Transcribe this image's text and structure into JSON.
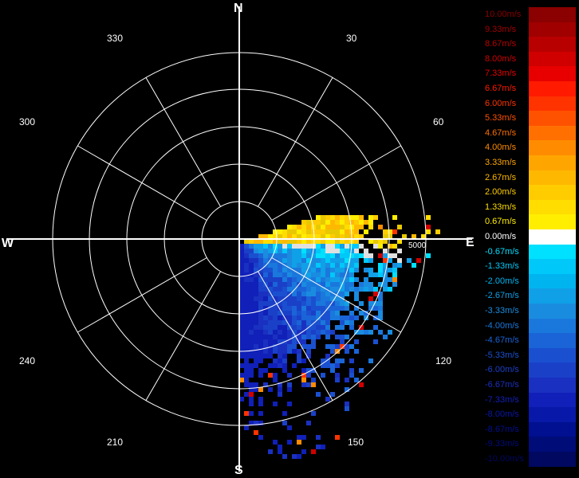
{
  "compass": {
    "north": "N",
    "south": "S",
    "east": "E",
    "west": "W"
  },
  "bearings": [
    "30",
    "60",
    "120",
    "150",
    "210",
    "240",
    "300",
    "330"
  ],
  "range_label": "5000",
  "legend": {
    "labels": [
      "10.00m/s",
      "9.33m/s",
      "8.67m/s",
      "8.00m/s",
      "7.33m/s",
      "6.67m/s",
      "6.00m/s",
      "5.33m/s",
      "4.67m/s",
      "4.00m/s",
      "3.33m/s",
      "2.67m/s",
      "2.00m/s",
      "1.33m/s",
      "0.67m/s",
      "0.00m/s",
      "-0.67m/s",
      "-1.33m/s",
      "-2.00m/s",
      "-2.67m/s",
      "-3.33m/s",
      "-4.00m/s",
      "-4.67m/s",
      "-5.33m/s",
      "-6.00m/s",
      "-6.67m/s",
      "-7.33m/s",
      "-8.00m/s",
      "-8.67m/s",
      "-9.33m/s",
      "-10.00m/s"
    ],
    "colors": [
      "#8b0000",
      "#a00000",
      "#b80000",
      "#d00000",
      "#e80000",
      "#ff1a00",
      "#ff3300",
      "#ff5200",
      "#ff7000",
      "#ff8c00",
      "#ffa500",
      "#ffb800",
      "#ffcc00",
      "#ffdd00",
      "#ffee00",
      "#ffffff",
      "#00e0ff",
      "#00c8f8",
      "#00b4f0",
      "#10a0e8",
      "#1a8ce0",
      "#1a78dc",
      "#1a64d8",
      "#1a50d0",
      "#1a40c8",
      "#1a30c0",
      "#1020b8",
      "#0818a8",
      "#001090",
      "#000c78",
      "#000860"
    ]
  }
}
